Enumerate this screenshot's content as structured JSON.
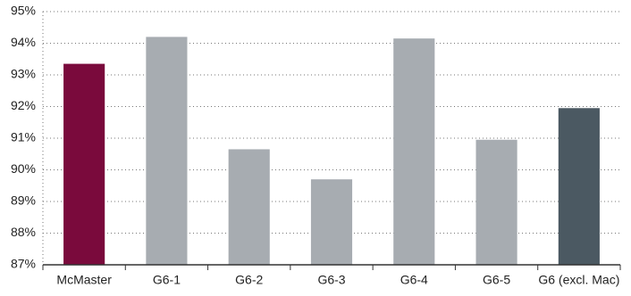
{
  "chart_data": {
    "type": "bar",
    "categories": [
      "McMaster",
      "G6-1",
      "G6-2",
      "G6-3",
      "G6-4",
      "G6-5",
      "G6 (excl. Mac)"
    ],
    "values": [
      93.35,
      94.2,
      90.65,
      89.7,
      94.15,
      90.95,
      91.95
    ],
    "colors": [
      "#7a0a3c",
      "#a7acb1",
      "#a7acb1",
      "#a7acb1",
      "#a7acb1",
      "#a7acb1",
      "#4b5962"
    ],
    "ylim": [
      87,
      95
    ],
    "yticks": [
      {
        "value": 87,
        "label": "87%"
      },
      {
        "value": 88,
        "label": "88%"
      },
      {
        "value": 89,
        "label": "89%"
      },
      {
        "value": 90,
        "label": "90%"
      },
      {
        "value": 91,
        "label": "91%"
      },
      {
        "value": 92,
        "label": "92%"
      },
      {
        "value": 93,
        "label": "93%"
      },
      {
        "value": 94,
        "label": "94%"
      },
      {
        "value": 95,
        "label": "95%"
      }
    ],
    "grid": true
  }
}
